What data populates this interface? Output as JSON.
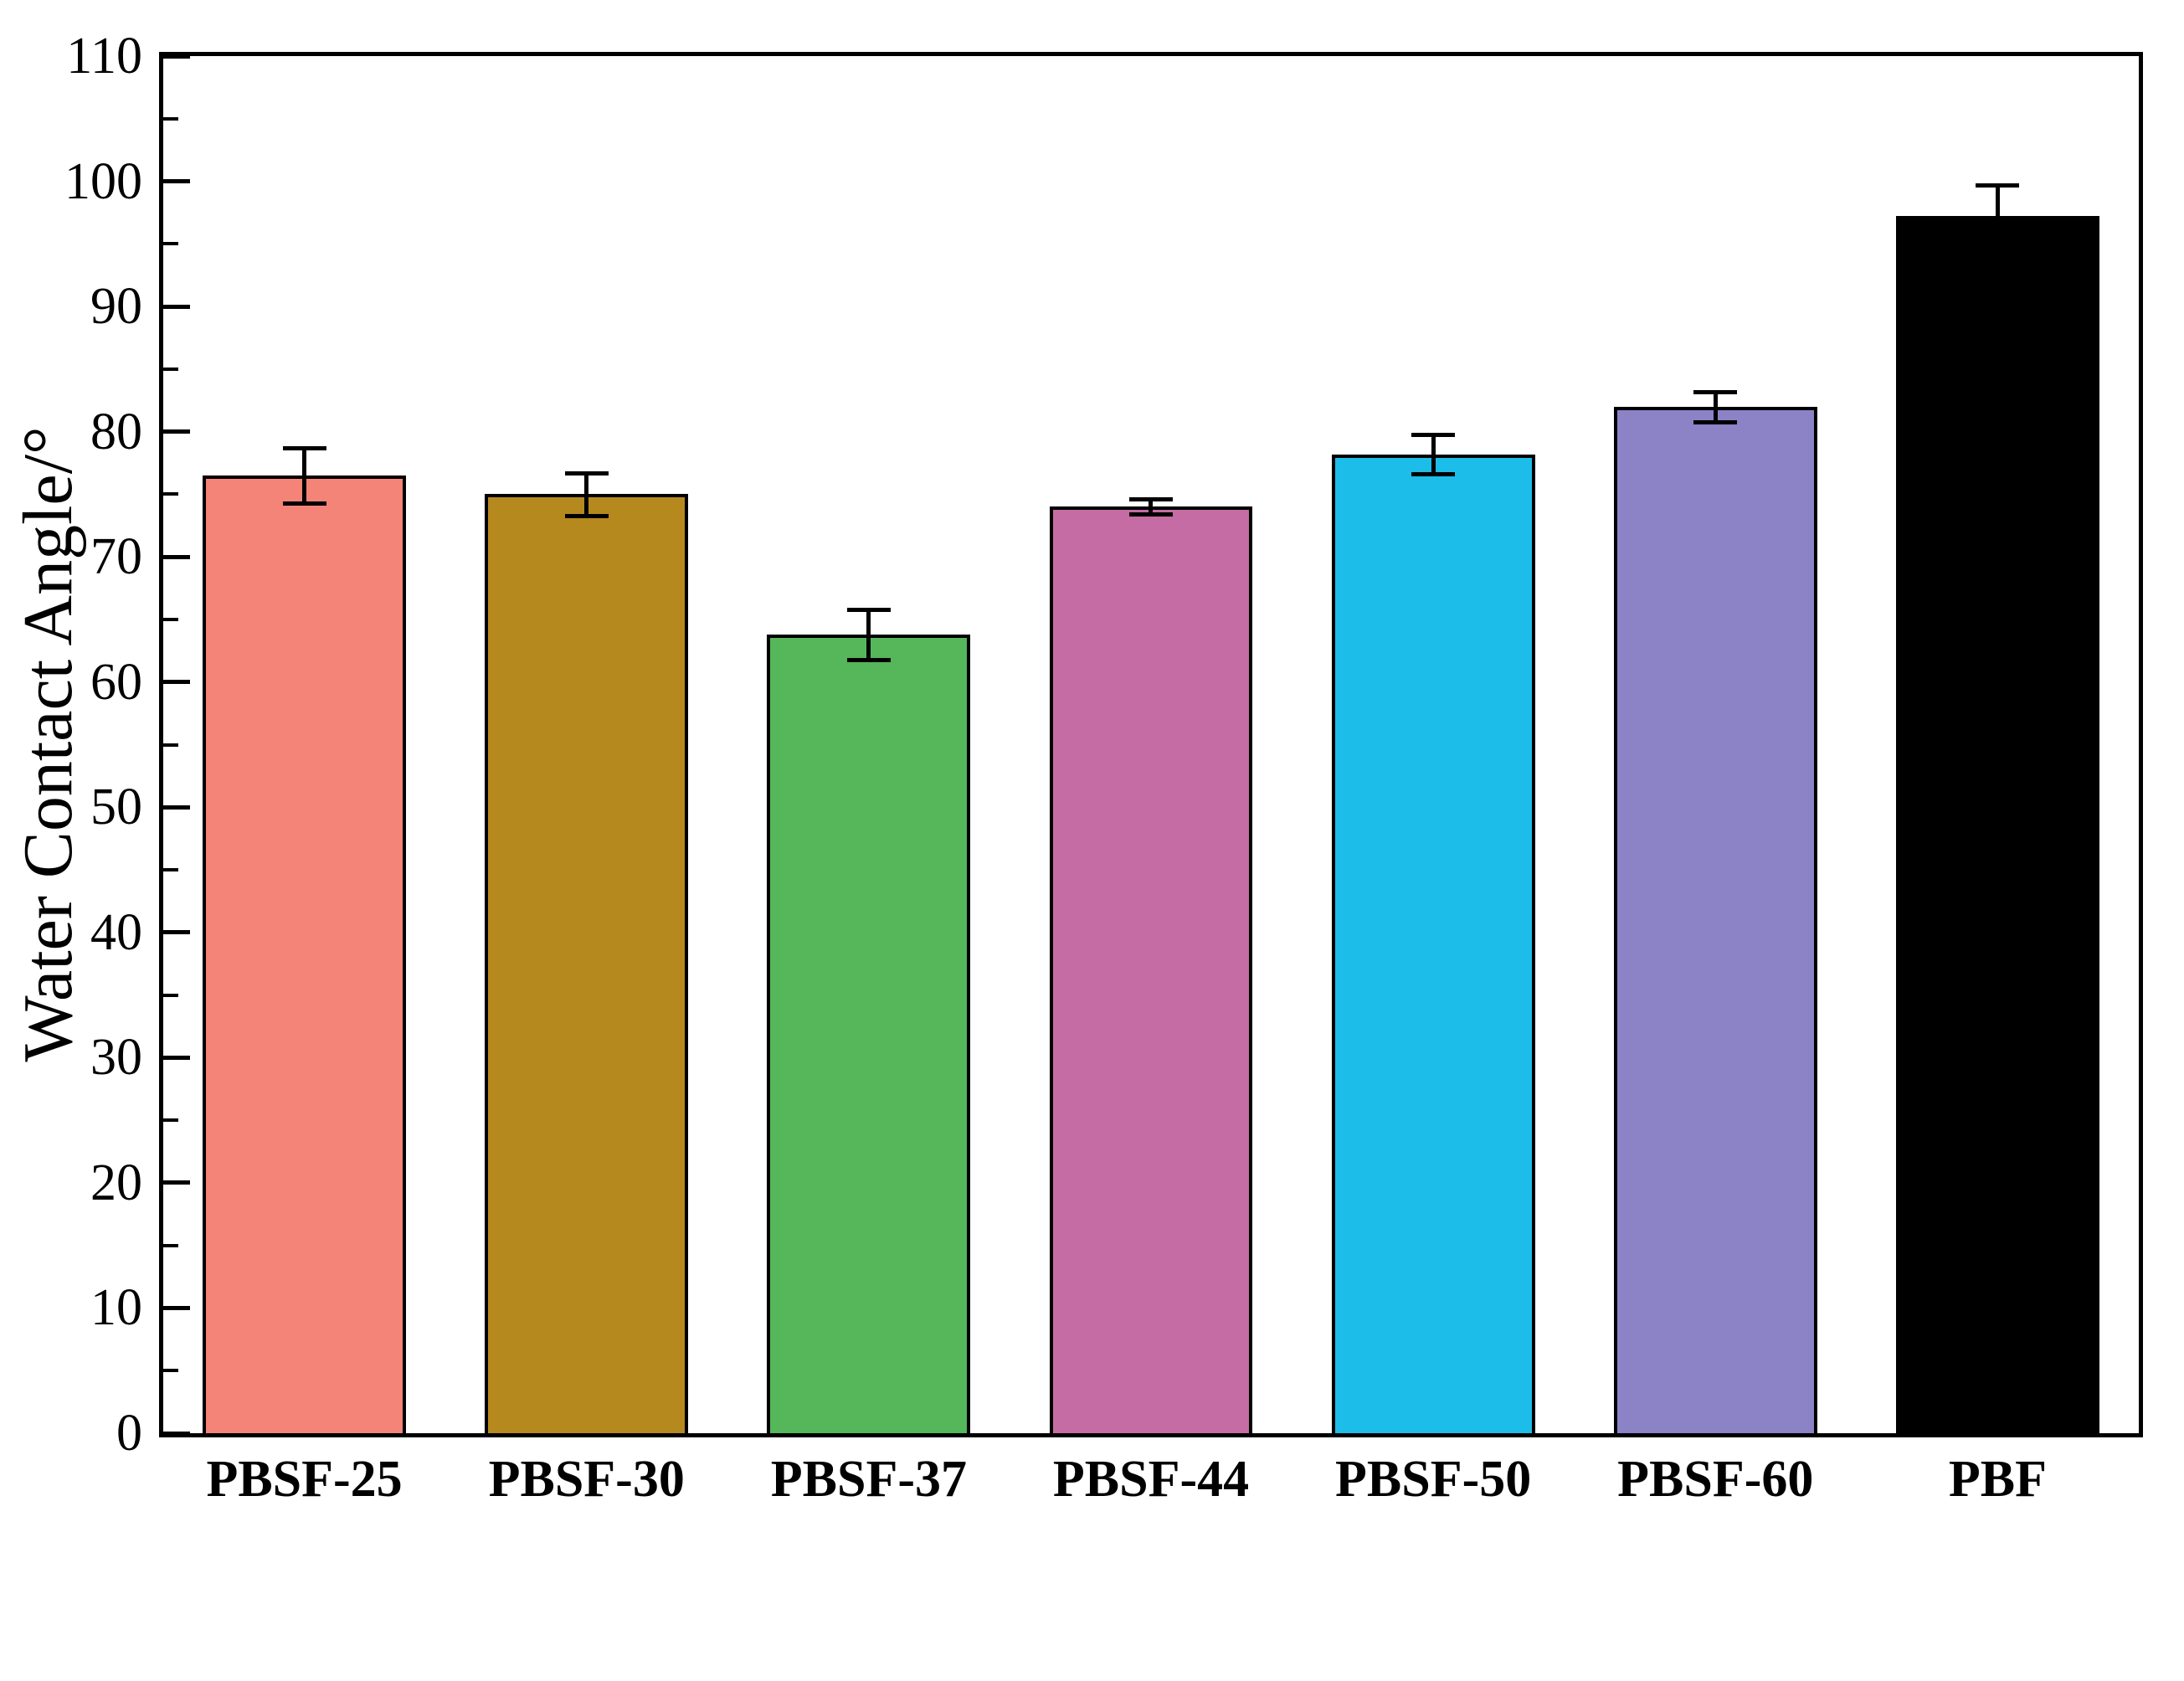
{
  "chart_data": {
    "type": "bar",
    "title": "",
    "xlabel": "",
    "ylabel": "Water Contact Angle/°",
    "ylim": [
      0,
      110
    ],
    "yticks": [
      0,
      10,
      20,
      30,
      40,
      50,
      60,
      70,
      80,
      90,
      100,
      110
    ],
    "minor_tick_step": 5,
    "grid": false,
    "legend": false,
    "categories": [
      "PBSF-25",
      "PBSF-30",
      "PBSF-37",
      "PBSF-44",
      "PBSF-50",
      "PBSF-60",
      "PBF"
    ],
    "values": [
      76.5,
      75.0,
      63.8,
      74.0,
      78.2,
      82.0,
      97.2
    ],
    "errors": [
      2.2,
      1.7,
      2.0,
      0.6,
      1.6,
      1.2,
      2.5
    ],
    "colors": [
      "#F48477",
      "#B6891F",
      "#55B75A",
      "#C56CA5",
      "#1CBDE8",
      "#8C82C6",
      "#000000"
    ],
    "frame_color": "#000000"
  }
}
